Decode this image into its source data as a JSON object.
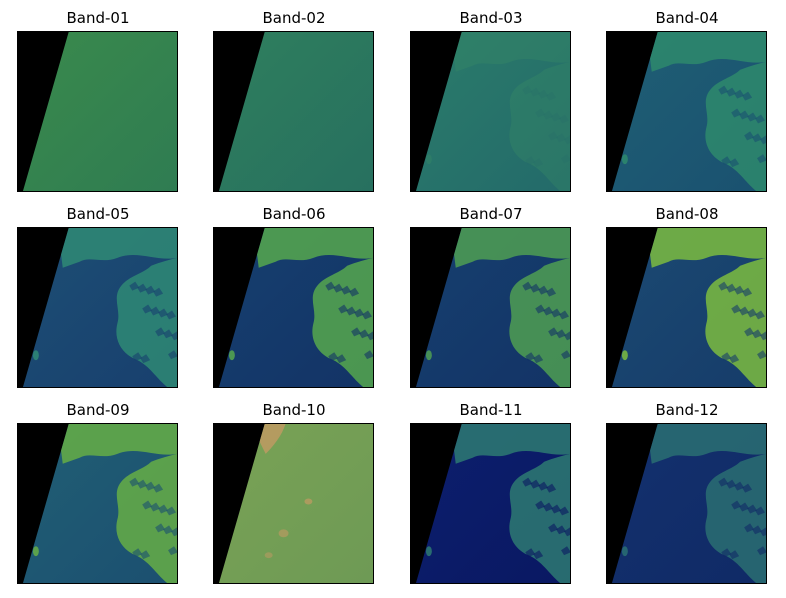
{
  "figure": {
    "panels": [
      {
        "title": "Band-01",
        "base": "#3a8a4c",
        "hi": "#4e9a44",
        "lo": "#2f7c52",
        "style": "flat"
      },
      {
        "title": "Band-02",
        "base": "#2f7f5e",
        "hi": "#3d8f57",
        "lo": "#27705f",
        "style": "flat"
      },
      {
        "title": "Band-03",
        "base": "#2b7c6a",
        "hi": "#3a8c63",
        "lo": "#236a6a",
        "style": "terrain-faint"
      },
      {
        "title": "Band-04",
        "base": "#1f5f74",
        "hi": "#2e8a6c",
        "lo": "#1a5170",
        "style": "terrain"
      },
      {
        "title": "Band-05",
        "base": "#1d4f74",
        "hi": "#2f8a74",
        "lo": "#183f6e",
        "style": "terrain"
      },
      {
        "title": "Band-06",
        "base": "#16406f",
        "hi": "#56a84e",
        "lo": "#133366",
        "style": "terrain-bright"
      },
      {
        "title": "Band-07",
        "base": "#16406f",
        "hi": "#4f9f52",
        "lo": "#133366",
        "style": "terrain-bright"
      },
      {
        "title": "Band-08",
        "base": "#1b4a72",
        "hi": "#7cbc3f",
        "lo": "#163c6a",
        "style": "terrain-vivid"
      },
      {
        "title": "Band-09",
        "base": "#215f74",
        "hi": "#66ae45",
        "lo": "#1b4f70",
        "style": "terrain-bright"
      },
      {
        "title": "Band-10",
        "base": "#79a255",
        "hi": "#c39a63",
        "lo": "#6e9a55",
        "style": "haze"
      },
      {
        "title": "Band-11",
        "base": "#0c1f6e",
        "hi": "#2e7a72",
        "lo": "#0a1862",
        "style": "terrain-dark"
      },
      {
        "title": "Band-12",
        "base": "#13316e",
        "hi": "#2a6f72",
        "lo": "#102a66",
        "style": "terrain-dark"
      }
    ]
  }
}
